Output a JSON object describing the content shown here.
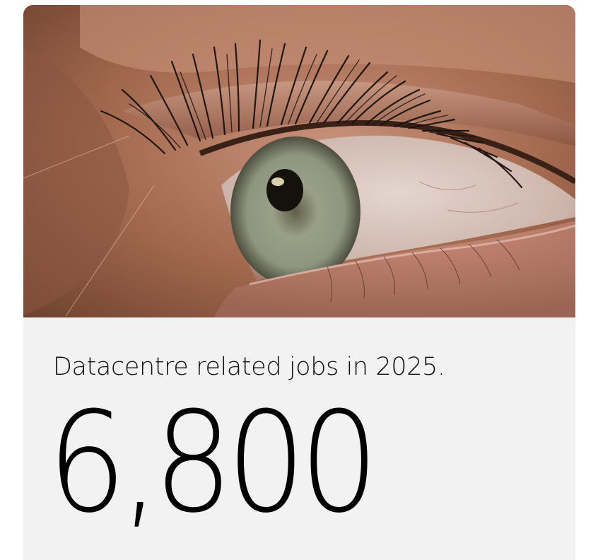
{
  "card": {
    "image": {
      "subject": "eye-closeup-photo",
      "colors": {
        "skin": "#a8715a",
        "iris": "#8f9880",
        "lashes": "#1a120e",
        "panel": "#f2f2f2"
      }
    },
    "caption": "Datacentre related jobs in 2025.",
    "stat_value": "6,800"
  }
}
